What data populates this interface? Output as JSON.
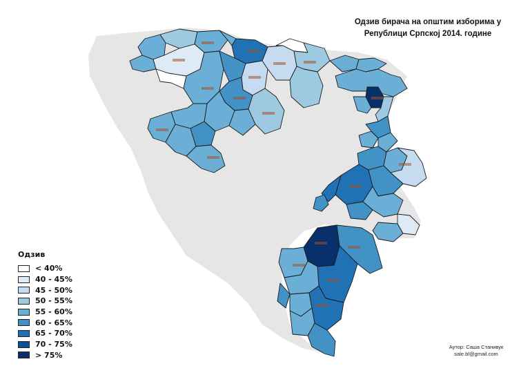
{
  "title_line1": "Одзив бирача на општим изборима у",
  "title_line2": "Републици Српској 2014. године",
  "legend": {
    "title": "Одзив",
    "items": [
      {
        "label": "< 40%",
        "color": "#ffffff"
      },
      {
        "label": "40 - 45%",
        "color": "#deebf7"
      },
      {
        "label": "45 - 50%",
        "color": "#c6dbef"
      },
      {
        "label": "50 - 55%",
        "color": "#9ecae1"
      },
      {
        "label": "55 - 60%",
        "color": "#6baed6"
      },
      {
        "label": "60 - 65%",
        "color": "#4292c6"
      },
      {
        "label": "65 - 70%",
        "color": "#2171b5"
      },
      {
        "label": "70 - 75%",
        "color": "#08519c"
      },
      {
        "label": "> 75%",
        "color": "#08306b"
      }
    ]
  },
  "author_line1": "Аутор: Саша Станивук",
  "author_line2": "sale.bl@gmail.com",
  "colors": {
    "other_territory": "#e6e6e6",
    "border": "#1a1a1a",
    "municipality_label": "#a0522d"
  }
}
